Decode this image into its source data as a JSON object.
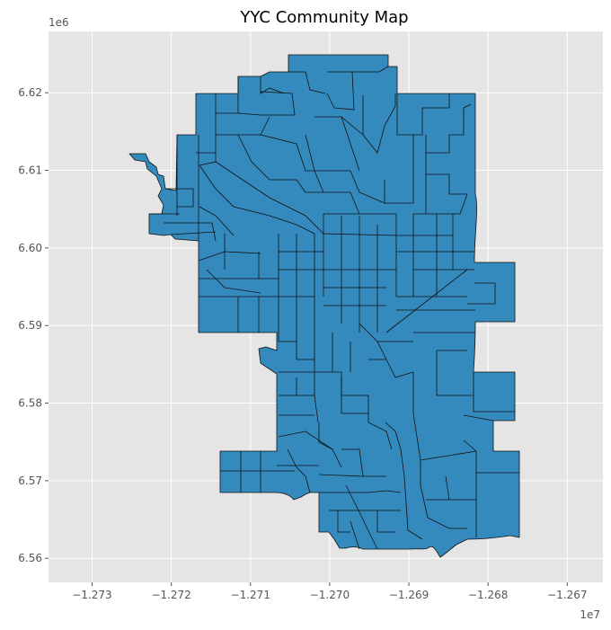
{
  "chart_data": {
    "type": "map",
    "title": "YYC Community Map",
    "xlabel": "",
    "ylabel": "",
    "x_offset_label": "1e7",
    "y_offset_label": "1e6",
    "xlim": [
      -1.27355,
      -1.26655
    ],
    "ylim": [
      6.5569,
      6.6279
    ],
    "x_ticks": [
      -1.273,
      -1.272,
      -1.271,
      -1.27,
      -1.269,
      -1.268,
      -1.267
    ],
    "x_tick_labels": [
      "−1.273",
      "−1.272",
      "−1.271",
      "−1.270",
      "−1.269",
      "−1.268",
      "−1.267"
    ],
    "y_ticks": [
      6.56,
      6.57,
      6.58,
      6.59,
      6.6,
      6.61,
      6.62
    ],
    "y_tick_labels": [
      "6.56",
      "6.57",
      "6.58",
      "6.59",
      "6.60",
      "6.61",
      "6.62"
    ],
    "grid": true,
    "background_color": "#e5e5e5",
    "fill_color": "#348abd",
    "edge_color": "#111111"
  }
}
